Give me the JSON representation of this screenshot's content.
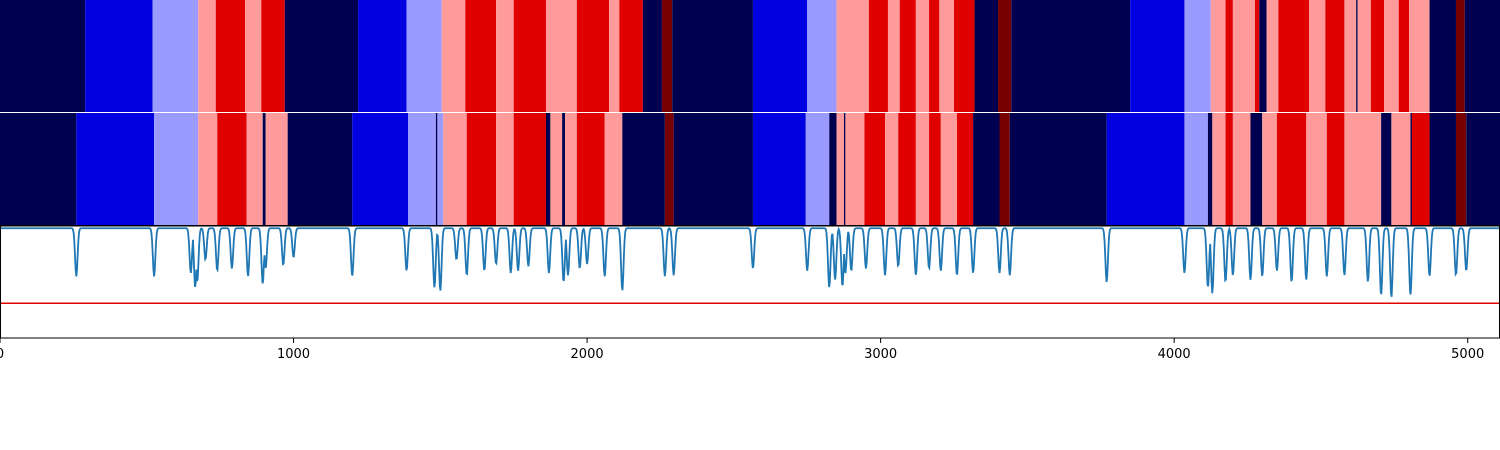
{
  "chart_data": {
    "type": "heatmap",
    "title": "",
    "xlabel": "",
    "ylabel": "",
    "xlim": [
      0,
      5110
    ],
    "grid": false,
    "x_ticks": [
      0,
      1000,
      2000,
      3000,
      4000,
      5000
    ],
    "x_tick_labels": [
      "0",
      "1000",
      "2000",
      "3000",
      "4000",
      "5000"
    ],
    "palette": {
      "0": "#000050",
      "1": "#0000e0",
      "2": "#9b9bff",
      "3": "#ff9b9b",
      "4": "#e00000",
      "5": "#780000"
    },
    "segmentation_rows": [
      {
        "segments": [
          [
            0,
            290,
            0
          ],
          [
            290,
            520,
            1
          ],
          [
            520,
            675,
            2
          ],
          [
            675,
            735,
            3
          ],
          [
            735,
            835,
            4
          ],
          [
            835,
            890,
            3
          ],
          [
            890,
            970,
            4
          ],
          [
            970,
            1220,
            0
          ],
          [
            1220,
            1385,
            1
          ],
          [
            1385,
            1505,
            2
          ],
          [
            1505,
            1585,
            3
          ],
          [
            1585,
            1690,
            4
          ],
          [
            1690,
            1750,
            3
          ],
          [
            1750,
            1860,
            4
          ],
          [
            1860,
            1965,
            3
          ],
          [
            1965,
            2075,
            4
          ],
          [
            2075,
            2110,
            3
          ],
          [
            2110,
            2190,
            4
          ],
          [
            2190,
            2255,
            0
          ],
          [
            2255,
            2290,
            5
          ],
          [
            2290,
            2565,
            0
          ],
          [
            2565,
            2750,
            1
          ],
          [
            2750,
            2850,
            2
          ],
          [
            2850,
            2960,
            3
          ],
          [
            2960,
            3025,
            4
          ],
          [
            3025,
            3065,
            3
          ],
          [
            3065,
            3120,
            4
          ],
          [
            3120,
            3165,
            3
          ],
          [
            3165,
            3200,
            4
          ],
          [
            3200,
            3250,
            3
          ],
          [
            3250,
            3320,
            4
          ],
          [
            3320,
            3400,
            0
          ],
          [
            3400,
            3445,
            5
          ],
          [
            3445,
            3850,
            0
          ],
          [
            3850,
            4035,
            1
          ],
          [
            4035,
            4125,
            2
          ],
          [
            4125,
            4175,
            3
          ],
          [
            4175,
            4200,
            4
          ],
          [
            4200,
            4275,
            3
          ],
          [
            4275,
            4290,
            4
          ],
          [
            4290,
            4315,
            0
          ],
          [
            4315,
            4355,
            3
          ],
          [
            4355,
            4460,
            4
          ],
          [
            4460,
            4515,
            3
          ],
          [
            4515,
            4580,
            4
          ],
          [
            4580,
            4620,
            3
          ],
          [
            4620,
            4625,
            0
          ],
          [
            4625,
            4670,
            3
          ],
          [
            4670,
            4715,
            4
          ],
          [
            4715,
            4765,
            3
          ],
          [
            4765,
            4800,
            4
          ],
          [
            4800,
            4870,
            3
          ],
          [
            4870,
            4960,
            0
          ],
          [
            4960,
            4990,
            5
          ],
          [
            4990,
            5110,
            0
          ]
        ]
      },
      {
        "segments": [
          [
            0,
            260,
            0
          ],
          [
            260,
            525,
            1
          ],
          [
            525,
            675,
            2
          ],
          [
            675,
            740,
            3
          ],
          [
            740,
            840,
            4
          ],
          [
            840,
            895,
            3
          ],
          [
            895,
            905,
            0
          ],
          [
            905,
            980,
            3
          ],
          [
            980,
            1200,
            0
          ],
          [
            1200,
            1390,
            1
          ],
          [
            1390,
            1485,
            2
          ],
          [
            1485,
            1490,
            0
          ],
          [
            1490,
            1510,
            2
          ],
          [
            1510,
            1590,
            3
          ],
          [
            1590,
            1690,
            4
          ],
          [
            1690,
            1750,
            3
          ],
          [
            1750,
            1860,
            4
          ],
          [
            1860,
            1875,
            0
          ],
          [
            1875,
            1915,
            3
          ],
          [
            1915,
            1925,
            0
          ],
          [
            1925,
            1965,
            3
          ],
          [
            1965,
            2060,
            4
          ],
          [
            2060,
            2120,
            3
          ],
          [
            2120,
            2265,
            0
          ],
          [
            2265,
            2295,
            5
          ],
          [
            2295,
            2565,
            0
          ],
          [
            2565,
            2745,
            1
          ],
          [
            2745,
            2825,
            2
          ],
          [
            2825,
            2850,
            0
          ],
          [
            2850,
            2875,
            3
          ],
          [
            2875,
            2880,
            0
          ],
          [
            2880,
            2945,
            3
          ],
          [
            2945,
            3015,
            4
          ],
          [
            3015,
            3060,
            3
          ],
          [
            3060,
            3120,
            4
          ],
          [
            3120,
            3165,
            3
          ],
          [
            3165,
            3205,
            4
          ],
          [
            3205,
            3260,
            3
          ],
          [
            3260,
            3315,
            4
          ],
          [
            3315,
            3405,
            0
          ],
          [
            3405,
            3440,
            5
          ],
          [
            3440,
            3770,
            0
          ],
          [
            3770,
            4035,
            1
          ],
          [
            4035,
            4115,
            2
          ],
          [
            4115,
            4130,
            0
          ],
          [
            4130,
            4175,
            3
          ],
          [
            4175,
            4200,
            4
          ],
          [
            4200,
            4260,
            3
          ],
          [
            4260,
            4300,
            0
          ],
          [
            4300,
            4350,
            3
          ],
          [
            4350,
            4450,
            4
          ],
          [
            4450,
            4520,
            3
          ],
          [
            4520,
            4580,
            4
          ],
          [
            4580,
            4705,
            3
          ],
          [
            4705,
            4740,
            0
          ],
          [
            4740,
            4805,
            3
          ],
          [
            4805,
            4810,
            0
          ],
          [
            4810,
            4870,
            4
          ],
          [
            4870,
            4960,
            0
          ],
          [
            4960,
            4995,
            5
          ],
          [
            4995,
            5110,
            0
          ]
        ]
      }
    ],
    "signal": {
      "name": "",
      "color": "#1f77b4",
      "ylim": [
        0,
        1
      ],
      "baseline": 0.98,
      "threshold": {
        "value": 0.31,
        "color": "#e00000"
      },
      "dips": [
        [
          260,
          0.55
        ],
        [
          525,
          0.55
        ],
        [
          650,
          0.58
        ],
        [
          665,
          0.45
        ],
        [
          672,
          0.5
        ],
        [
          700,
          0.7
        ],
        [
          740,
          0.6
        ],
        [
          790,
          0.62
        ],
        [
          845,
          0.55
        ],
        [
          895,
          0.48
        ],
        [
          905,
          0.62
        ],
        [
          965,
          0.65
        ],
        [
          1000,
          0.72
        ],
        [
          1200,
          0.55
        ],
        [
          1385,
          0.6
        ],
        [
          1480,
          0.45
        ],
        [
          1500,
          0.42
        ],
        [
          1555,
          0.7
        ],
        [
          1590,
          0.56
        ],
        [
          1650,
          0.6
        ],
        [
          1690,
          0.66
        ],
        [
          1740,
          0.58
        ],
        [
          1765,
          0.6
        ],
        [
          1800,
          0.64
        ],
        [
          1870,
          0.58
        ],
        [
          1920,
          0.5
        ],
        [
          1935,
          0.56
        ],
        [
          1975,
          0.62
        ],
        [
          2000,
          0.66
        ],
        [
          2060,
          0.55
        ],
        [
          2120,
          0.42
        ],
        [
          2265,
          0.55
        ],
        [
          2295,
          0.56
        ],
        [
          2565,
          0.62
        ],
        [
          2750,
          0.6
        ],
        [
          2825,
          0.45
        ],
        [
          2845,
          0.52
        ],
        [
          2870,
          0.46
        ],
        [
          2880,
          0.58
        ],
        [
          2900,
          0.6
        ],
        [
          2950,
          0.62
        ],
        [
          3015,
          0.56
        ],
        [
          3060,
          0.64
        ],
        [
          3120,
          0.56
        ],
        [
          3165,
          0.62
        ],
        [
          3205,
          0.6
        ],
        [
          3260,
          0.56
        ],
        [
          3315,
          0.58
        ],
        [
          3405,
          0.58
        ],
        [
          3440,
          0.56
        ],
        [
          3770,
          0.5
        ],
        [
          4035,
          0.58
        ],
        [
          4115,
          0.45
        ],
        [
          4130,
          0.4
        ],
        [
          4175,
          0.5
        ],
        [
          4200,
          0.56
        ],
        [
          4260,
          0.52
        ],
        [
          4300,
          0.55
        ],
        [
          4350,
          0.6
        ],
        [
          4400,
          0.5
        ],
        [
          4450,
          0.52
        ],
        [
          4520,
          0.55
        ],
        [
          4580,
          0.56
        ],
        [
          4660,
          0.5
        ],
        [
          4705,
          0.38
        ],
        [
          4740,
          0.36
        ],
        [
          4805,
          0.38
        ],
        [
          4870,
          0.55
        ],
        [
          4960,
          0.56
        ],
        [
          4995,
          0.6
        ]
      ]
    }
  }
}
